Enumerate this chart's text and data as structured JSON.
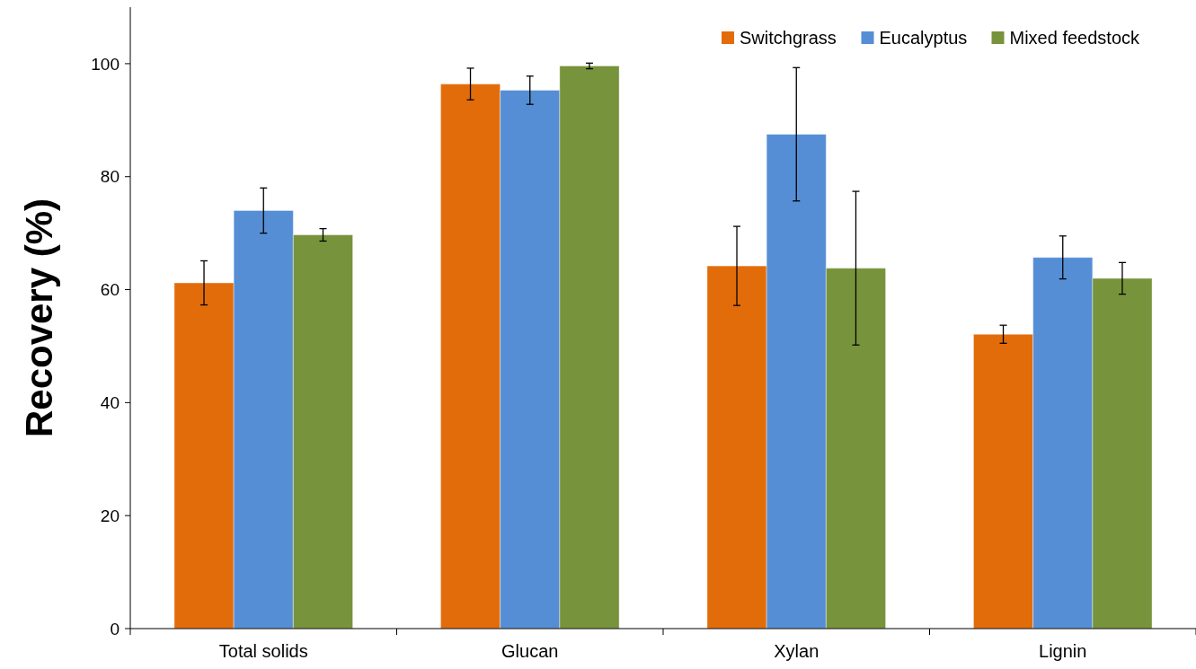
{
  "chart_data": {
    "type": "bar",
    "ylabel": "Recovery (%)",
    "categories": [
      "Total solids",
      "Glucan",
      "Xylan",
      "Lignin"
    ],
    "series": [
      {
        "name": "Switchgrass",
        "color": "#e36c0a",
        "values": [
          61.2,
          96.4,
          64.2,
          52.1
        ],
        "errors": [
          3.9,
          2.8,
          7,
          1.6
        ]
      },
      {
        "name": "Eucalyptus",
        "color": "#558ed5",
        "values": [
          74,
          95.3,
          87.5,
          65.7
        ],
        "errors": [
          4,
          2.5,
          11.8,
          3.8
        ]
      },
      {
        "name": "Mixed feedstock",
        "color": "#77933c",
        "values": [
          69.7,
          99.6,
          63.8,
          62
        ],
        "errors": [
          1.1,
          0.5,
          13.6,
          2.8
        ]
      }
    ],
    "ylim": [
      0,
      110
    ],
    "yticks": [
      0,
      20,
      40,
      60,
      80,
      100
    ],
    "legend": "top right"
  }
}
